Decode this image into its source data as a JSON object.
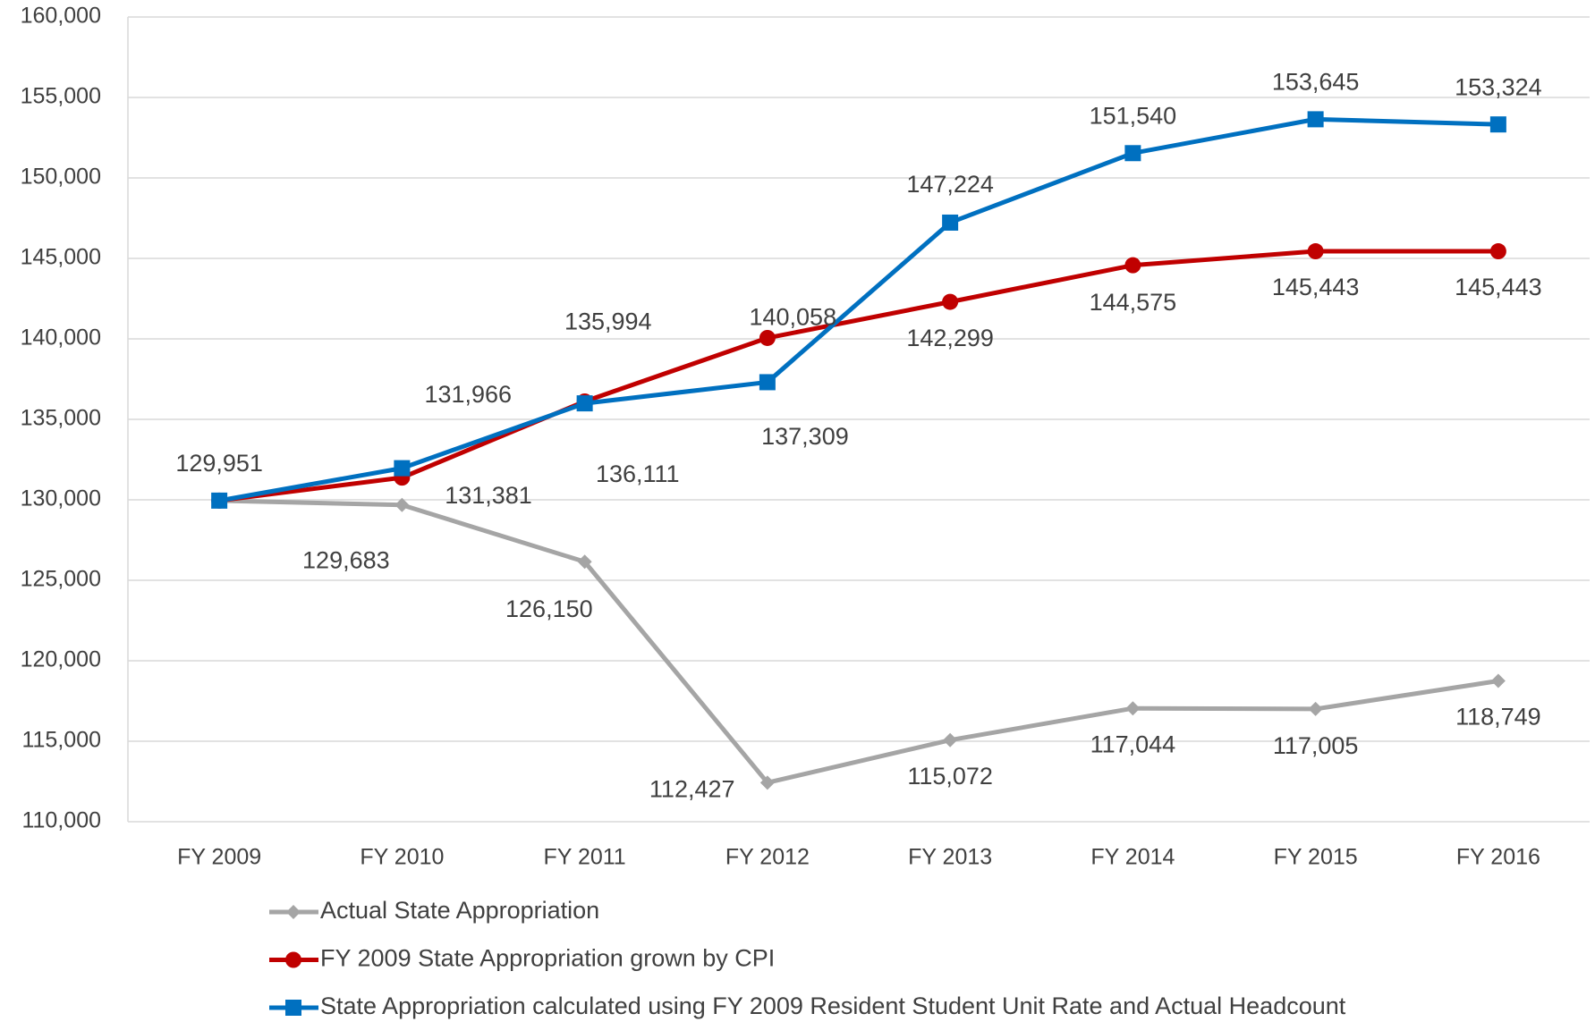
{
  "chart_data": {
    "type": "line",
    "categories": [
      "FY 2009",
      "FY 2010",
      "FY 2011",
      "FY 2012",
      "FY 2013",
      "FY 2014",
      "FY 2015",
      "FY 2016"
    ],
    "series": [
      {
        "name": "Actual State Appropriation",
        "color": "#a5a5a5",
        "marker": "diamond",
        "values": [
          129951,
          129683,
          126150,
          112427,
          115072,
          117044,
          117005,
          118749
        ],
        "value_labels": [
          null,
          "129,683",
          "126,150",
          "112,427",
          "115,072",
          "117,044",
          "117,005",
          "118,749"
        ]
      },
      {
        "name": "FY 2009 State Appropriation grown by CPI",
        "color": "#c00000",
        "marker": "circle",
        "values": [
          129951,
          131381,
          136111,
          140058,
          142299,
          144575,
          145443,
          145443
        ],
        "value_labels": [
          null,
          "131,381",
          "136,111",
          "140,058",
          "142,299",
          "144,575",
          "145,443",
          "145,443"
        ]
      },
      {
        "name": "State Appropriation calculated using FY 2009 Resident Student Unit Rate and Actual Headcount",
        "color": "#0070c0",
        "marker": "square",
        "values": [
          129951,
          131966,
          135994,
          137309,
          147224,
          151540,
          153645,
          153324
        ],
        "value_labels": [
          "129,951",
          "131,966",
          "135,994",
          "137,309",
          "147,224",
          "151,540",
          "153,645",
          "153,324"
        ]
      }
    ],
    "ylim": [
      110000,
      160000
    ],
    "yticks": [
      {
        "value": 110000,
        "label": "110,000"
      },
      {
        "value": 115000,
        "label": "115,000"
      },
      {
        "value": 120000,
        "label": "120,000"
      },
      {
        "value": 125000,
        "label": "125,000"
      },
      {
        "value": 130000,
        "label": "130,000"
      },
      {
        "value": 135000,
        "label": "135,000"
      },
      {
        "value": 140000,
        "label": "140,000"
      },
      {
        "value": 145000,
        "label": "145,000"
      },
      {
        "value": 150000,
        "label": "150,000"
      },
      {
        "value": 155000,
        "label": "155,000"
      },
      {
        "value": 160000,
        "label": "160,000"
      }
    ],
    "grid": true,
    "legend": "bottom"
  }
}
